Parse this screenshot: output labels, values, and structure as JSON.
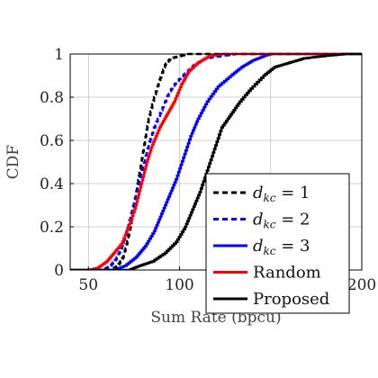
{
  "chart_data": {
    "type": "line",
    "title": "",
    "xlabel": "Sum Rate (bpcu)",
    "ylabel": "CDF",
    "xlim": [
      40,
      200
    ],
    "ylim": [
      0,
      1
    ],
    "xticks": [
      "50",
      "100",
      "150",
      "200"
    ],
    "yticks": [
      "0",
      "0.2",
      "0.4",
      "0.6",
      "0.8",
      "1"
    ],
    "grid": true,
    "legend_position": "bottom-right",
    "series": [
      {
        "name": "d_kc = 1",
        "label_main": "d",
        "label_sub": "kc",
        "label_rest": " = 1",
        "color": "#000000",
        "dash": "dashed",
        "points": [
          [
            62,
            0
          ],
          [
            66,
            0.02
          ],
          [
            69,
            0.06
          ],
          [
            71,
            0.12
          ],
          [
            73,
            0.2
          ],
          [
            75,
            0.3
          ],
          [
            77,
            0.4
          ],
          [
            79,
            0.5
          ],
          [
            81,
            0.6
          ],
          [
            83,
            0.7
          ],
          [
            86,
            0.8
          ],
          [
            89,
            0.88
          ],
          [
            92,
            0.95
          ],
          [
            95,
            0.98
          ],
          [
            100,
            0.99
          ],
          [
            104,
            1
          ]
        ]
      },
      {
        "name": "d_kc = 2",
        "label_main": "d",
        "label_sub": "kc",
        "label_rest": " = 2",
        "color": "#0000ff",
        "dash": "dashed",
        "points": [
          [
            58,
            0
          ],
          [
            62,
            0.02
          ],
          [
            65,
            0.05
          ],
          [
            68,
            0.1
          ],
          [
            71,
            0.18
          ],
          [
            74,
            0.28
          ],
          [
            77,
            0.38
          ],
          [
            80,
            0.48
          ],
          [
            83,
            0.58
          ],
          [
            86,
            0.66
          ],
          [
            90,
            0.74
          ],
          [
            94,
            0.82
          ],
          [
            98,
            0.87
          ],
          [
            103,
            0.91
          ],
          [
            108,
            0.95
          ],
          [
            114,
            0.98
          ],
          [
            122,
            0.99
          ],
          [
            130,
            1
          ]
        ]
      },
      {
        "name": "d_kc = 3",
        "label_main": "d",
        "label_sub": "kc",
        "label_rest": " = 3",
        "color": "#0000ff",
        "dash": "solid",
        "points": [
          [
            64,
            0
          ],
          [
            70,
            0.02
          ],
          [
            76,
            0.06
          ],
          [
            81,
            0.11
          ],
          [
            86,
            0.18
          ],
          [
            90,
            0.26
          ],
          [
            94,
            0.34
          ],
          [
            98,
            0.42
          ],
          [
            102,
            0.52
          ],
          [
            106,
            0.62
          ],
          [
            110,
            0.7
          ],
          [
            115,
            0.78
          ],
          [
            121,
            0.85
          ],
          [
            128,
            0.9
          ],
          [
            134,
            0.94
          ],
          [
            140,
            0.97
          ],
          [
            146,
            0.99
          ],
          [
            150,
            1
          ]
        ]
      },
      {
        "name": "Random",
        "label_main": "Random",
        "label_sub": "",
        "label_rest": "",
        "color": "#ff0000",
        "dash": "solid",
        "points": [
          [
            50,
            0
          ],
          [
            55,
            0.01
          ],
          [
            60,
            0.04
          ],
          [
            64,
            0.08
          ],
          [
            68,
            0.12
          ],
          [
            72,
            0.2
          ],
          [
            76,
            0.3
          ],
          [
            79,
            0.4
          ],
          [
            82,
            0.5
          ],
          [
            85,
            0.58
          ],
          [
            89,
            0.66
          ],
          [
            93,
            0.72
          ],
          [
            97,
            0.78
          ],
          [
            101,
            0.86
          ],
          [
            105,
            0.92
          ],
          [
            110,
            0.96
          ],
          [
            116,
            0.99
          ],
          [
            123,
            1
          ]
        ]
      },
      {
        "name": "Proposed",
        "label_main": "Proposed",
        "label_sub": "",
        "label_rest": "",
        "color": "#000000",
        "dash": "solid",
        "points": [
          [
            72,
            0
          ],
          [
            78,
            0.02
          ],
          [
            85,
            0.04
          ],
          [
            92,
            0.08
          ],
          [
            98,
            0.13
          ],
          [
            103,
            0.2
          ],
          [
            107,
            0.28
          ],
          [
            111,
            0.36
          ],
          [
            115,
            0.46
          ],
          [
            119,
            0.56
          ],
          [
            123,
            0.66
          ],
          [
            128,
            0.72
          ],
          [
            133,
            0.78
          ],
          [
            139,
            0.84
          ],
          [
            146,
            0.9
          ],
          [
            152,
            0.94
          ],
          [
            160,
            0.96
          ],
          [
            168,
            0.98
          ],
          [
            178,
            0.99
          ],
          [
            190,
            1
          ]
        ]
      }
    ]
  }
}
